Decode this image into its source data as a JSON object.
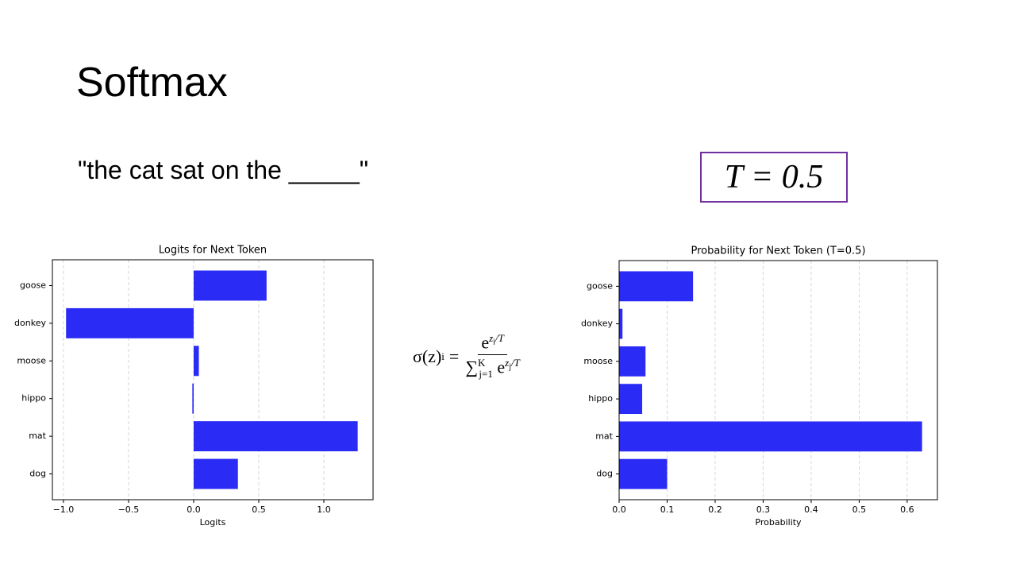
{
  "title": "Softmax",
  "prompt": "\"the cat sat on the _____\"",
  "temperature_label": "T = 0.5",
  "formula": {
    "lhs": "σ(z)",
    "lhs_index": "i",
    "equals": "=",
    "num_base": "e",
    "num_exp": "z",
    "num_exp_index": "i",
    "num_exp_tail": "/T",
    "sum": "∑",
    "sum_lower": "j=1",
    "sum_upper": "K",
    "den_base": "e",
    "den_exp": "z",
    "den_exp_index": "j",
    "den_exp_tail": "/T"
  },
  "chart_data": [
    {
      "type": "barh",
      "title": "Logits for Next Token",
      "x_label": "Logits",
      "categories": [
        "goose",
        "donkey",
        "moose",
        "hippo",
        "mat",
        "dog"
      ],
      "values": [
        0.56,
        -0.98,
        0.04,
        -0.01,
        1.26,
        0.34
      ],
      "color": "#2b2bf6",
      "xlim": [
        -1.085,
        1.378
      ],
      "xticks": [
        {
          "value": -1,
          "label": "−1.0"
        },
        {
          "value": -0.5,
          "label": "−0.5"
        },
        {
          "value": 0,
          "label": "0.0"
        },
        0.5,
        {
          "value": 1,
          "label": "1.0"
        }
      ],
      "grid": true
    },
    {
      "type": "barh",
      "title": "Probability for Next Token (T=0.5)",
      "x_label": "Probability",
      "categories": [
        "goose",
        "donkey",
        "moose",
        "hippo",
        "mat",
        "dog"
      ],
      "values": [
        0.154,
        0.007,
        0.055,
        0.048,
        0.631,
        0.1
      ],
      "color": "#2b2bf6",
      "xlim": [
        0,
        0.663
      ],
      "xticks": [
        {
          "value": 0,
          "label": "0.0"
        },
        0.1,
        0.2,
        0.3,
        0.4,
        0.5,
        0.6
      ],
      "grid": true
    }
  ]
}
